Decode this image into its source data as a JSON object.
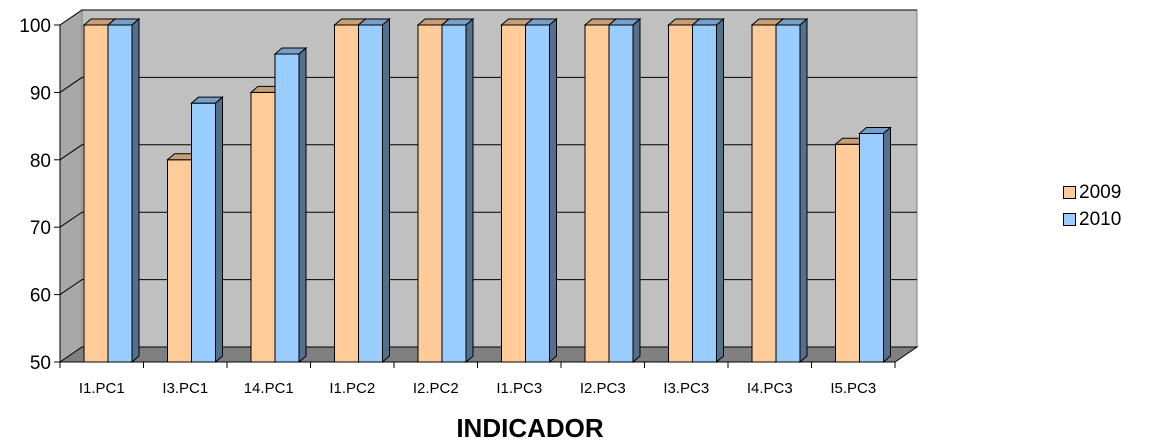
{
  "chart_data": {
    "type": "bar",
    "categories": [
      "I1.PC1",
      "I3.PC1",
      "14.PC1",
      "I1.PC2",
      "I2.PC2",
      "I1.PC3",
      "I2.PC3",
      "I3.PC3",
      "I4.PC3",
      "I5.PC3"
    ],
    "series": [
      {
        "name": "2009",
        "values": [
          100,
          80,
          90,
          100,
          100,
          100,
          100,
          100,
          100,
          82.3
        ]
      },
      {
        "name": "2010",
        "values": [
          100,
          88.4,
          95.7,
          100,
          100,
          100,
          100,
          100,
          100,
          83.9
        ]
      }
    ],
    "xlabel": "INDICADOR",
    "ylabel": "",
    "ylim": [
      50,
      100
    ],
    "yticks": [
      "50",
      "60",
      "70",
      "80",
      "90",
      "100"
    ],
    "grid": true,
    "legend_position": "right",
    "style": "3d-clustered-column",
    "colors": {
      "series_2009": "#FFCC99",
      "series_2010": "#99CCFF",
      "wall": "#C0C0C0",
      "floor": "#808080",
      "axis": "#000000"
    }
  }
}
